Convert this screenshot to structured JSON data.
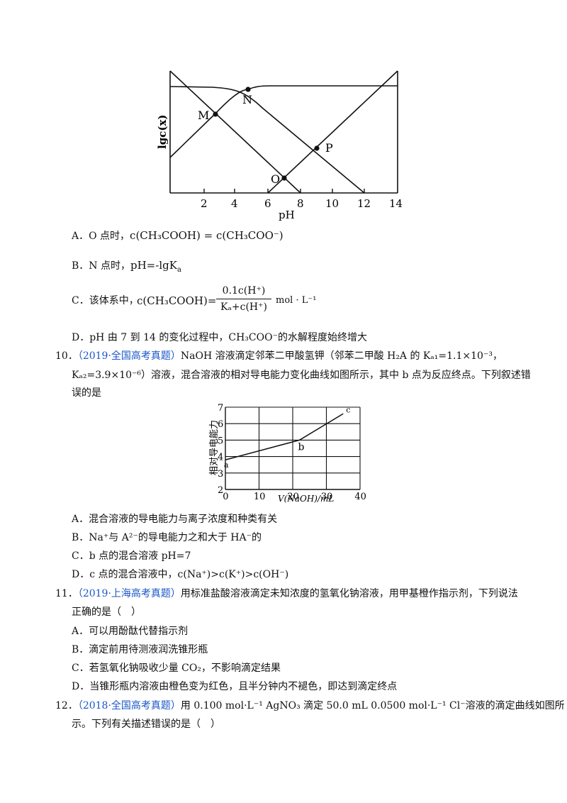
{
  "chart1": {
    "ylabel": "lgc(x)",
    "xlabel": "pH",
    "xticks": [
      "2",
      "4",
      "6",
      "8",
      "10",
      "12",
      "14"
    ],
    "points": [
      {
        "name": "M",
        "x": 3
      },
      {
        "name": "N",
        "x": 4.76
      },
      {
        "name": "P",
        "x": 9
      },
      {
        "name": "O",
        "x": 7
      }
    ]
  },
  "q9": {
    "A": {
      "prefix": "A．O 点时，",
      "lhs": "c(CH₃COOH) = c(CH₃COO⁻)"
    },
    "B": {
      "prefix": "B．N 点时，",
      "expr": "pH=-lgK",
      "sub": "a"
    },
    "C": {
      "prefix": "C．该体系中，",
      "lhs": "c(CH₃COOH)=",
      "num": "0.1c(H⁺)",
      "den": "Kₐ+c(H⁺)",
      "unit": "mol · L⁻¹"
    },
    "D": {
      "text_before": "D．pH 由 7 到 14 的变化过程中，",
      "species": "CH₃COO⁻",
      "text_after": "的水解程度始终增大"
    }
  },
  "q10": {
    "num": "10．",
    "source": "（2019·全国高考真题）",
    "line1": "NaOH 溶液滴定邻苯二甲酸氢钾（邻苯二甲酸 H₂A 的 Kₐ₁=1.1×10⁻³，",
    "line2": "Kₐ₂=3.9×10⁻⁶）溶液，混合溶液的相对导电能力变化曲线如图所示，其中 b 点为反应终点。下列叙述错",
    "line3": "误的是",
    "chart": {
      "type": "line",
      "ylabel": "相对导电能力",
      "xlabel": "V(NaOH)/mL",
      "x": [
        0,
        22,
        35
      ],
      "y": [
        3.8,
        5.0,
        6.6
      ],
      "point_labels": [
        "a",
        "b",
        "c"
      ],
      "xticks": [
        "0",
        "10",
        "20",
        "30",
        "40"
      ],
      "yticks": [
        "2",
        "3",
        "4",
        "5",
        "6",
        "7"
      ],
      "xlim": [
        0,
        40
      ],
      "ylim": [
        2,
        7
      ]
    },
    "A": "A．混合溶液的导电能力与离子浓度和种类有关",
    "B": "B．Na⁺与 A²⁻的导电能力之和大于 HA⁻的",
    "C": "C．b 点的混合溶液 pH=7",
    "D": "D．c 点的混合溶液中，c(Na⁺)>c(K⁺)>c(OH⁻)"
  },
  "q11": {
    "num": "11．",
    "source": "（2019·上海高考真题）",
    "line1": "用标准盐酸溶液滴定未知浓度的氢氧化钠溶液，用甲基橙作指示剂，下列说法",
    "line2": "正确的是（　）",
    "A": "A．可以用酚酞代替指示剂",
    "B": "B．滴定前用待测液润洗锥形瓶",
    "C": "C．若氢氧化钠吸收少量 CO₂，不影响滴定结果",
    "D": "D．当锥形瓶内溶液由橙色变为红色，且半分钟内不褪色，即达到滴定终点"
  },
  "q12": {
    "num": "12．",
    "source": "（2018·全国高考真题）",
    "line1": "用 0.100 mol·L⁻¹ AgNO₃ 滴定 50.0 mL 0.0500 mol·L⁻¹ Cl⁻溶液的滴定曲线如图所",
    "line2": "示。下列有关描述错误的是（　）"
  }
}
